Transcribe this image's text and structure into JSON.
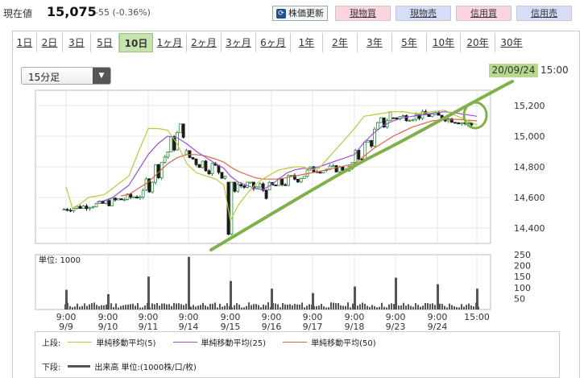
{
  "header": {
    "price_label": "現在値",
    "price_value": "15,075",
    "price_change": "-55 (-0.36%)",
    "refresh_label": "株価更新",
    "buttons": [
      "現物買",
      "現物売",
      "信用買",
      "信用売"
    ]
  },
  "periods": [
    "1日",
    "2日",
    "3日",
    "5日",
    "10日",
    "1ヶ月",
    "2ヶ月",
    "3ヶ月",
    "6ヶ月",
    "1年",
    "2年",
    "3年",
    "5年",
    "10年",
    "20年",
    "30年"
  ],
  "active_period": "10日",
  "interval_select": "15分足",
  "timestamp": {
    "date": "20/09/24",
    "time": "15:00"
  },
  "volume_unit": "単位: 1000",
  "legend": {
    "upper_label": "上段:",
    "ma5": "単純移動平均(5)",
    "ma25": "単純移動平均(25)",
    "ma50": "単純移動平均(50)",
    "lower_label": "下段:",
    "volume": "出来高 単位:(1000株/口/枚)"
  },
  "colors": {
    "ma5": "#b6cc3a",
    "ma25": "#9a4fd6",
    "ma50": "#d9664a",
    "up": "#2d8a3a",
    "down": "#1a1a1a",
    "trendline": "#7fb04a",
    "volume": "#555555"
  },
  "chart_data": {
    "type": "candlestick",
    "price_axis": {
      "ylim": [
        14300,
        15300
      ],
      "ticks": [
        15200,
        15000,
        14800,
        14600,
        14400
      ]
    },
    "volume_axis": {
      "ylim": [
        0,
        250
      ],
      "ticks": [
        250,
        200,
        150,
        100,
        50
      ]
    },
    "x_labels": [
      {
        "time": "9:00",
        "date": "9/9"
      },
      {
        "time": "9:00",
        "date": "9/10"
      },
      {
        "time": "9:00",
        "date": "9/11"
      },
      {
        "time": "9:00",
        "date": "9/14"
      },
      {
        "time": "9:00",
        "date": "9/15"
      },
      {
        "time": "9:00",
        "date": "9/16"
      },
      {
        "time": "9:00",
        "date": "9/17"
      },
      {
        "time": "9:00",
        "date": "9/18"
      },
      {
        "time": "9:00",
        "date": "9/23"
      },
      {
        "time": "9:00",
        "date": "9/24"
      },
      {
        "time": "15:00",
        "date": ""
      }
    ],
    "day_segments": [
      {
        "day": "9/9",
        "open": 14520,
        "close": 14560,
        "low": 14470,
        "high": 14580
      },
      {
        "day": "9/10",
        "open": 14560,
        "close": 14620,
        "low": 14540,
        "high": 14700
      },
      {
        "day": "9/11",
        "open": 14650,
        "close": 15060,
        "low": 14620,
        "high": 15080
      },
      {
        "day": "9/14",
        "open": 14880,
        "close": 14760,
        "low": 14700,
        "high": 15000
      },
      {
        "day": "9/15",
        "open": 14700,
        "close": 14650,
        "low": 14340,
        "high": 14700
      },
      {
        "day": "9/16",
        "open": 14650,
        "close": 14760,
        "low": 14600,
        "high": 14830
      },
      {
        "day": "9/17",
        "open": 14780,
        "close": 14790,
        "low": 14760,
        "high": 14900
      },
      {
        "day": "9/18",
        "open": 14790,
        "close": 15150,
        "low": 14770,
        "high": 15160
      },
      {
        "day": "9/23",
        "open": 15120,
        "close": 15140,
        "low": 15080,
        "high": 15230
      },
      {
        "day": "9/24",
        "open": 15140,
        "close": 15075,
        "low": 15060,
        "high": 15180
      }
    ],
    "ma5_points": [
      null,
      14670,
      14530,
      14560,
      14600,
      14610,
      14620,
      14660,
      14700,
      14740,
      14900,
      15050,
      15050,
      15040,
      14950,
      14820,
      14760,
      14740,
      14720,
      14680,
      14450,
      14550,
      14620,
      14680,
      14720,
      14750,
      14780,
      14790,
      14800,
      14800,
      14780,
      14790,
      15050,
      15130,
      15140,
      15150,
      15160,
      15160,
      15150,
      15150,
      15160,
      15170,
      15130,
      15075
    ],
    "ma25_points": [
      null,
      null,
      null,
      null,
      null,
      14570,
      14580,
      14600,
      14640,
      14680,
      14780,
      14880,
      14950,
      15000,
      14990,
      14950,
      14900,
      14860,
      14820,
      14790,
      14740,
      14700,
      14680,
      14660,
      14650,
      14680,
      14720,
      14760,
      14780,
      14790,
      14790,
      14800,
      14880,
      14960,
      15020,
      15070,
      15100,
      15120,
      15130,
      15140,
      15150,
      15160,
      15150,
      15130
    ],
    "ma50_points": [
      null,
      null,
      null,
      null,
      null,
      null,
      null,
      null,
      14610,
      14620,
      14660,
      14700,
      14760,
      14820,
      14860,
      14880,
      14880,
      14870,
      14850,
      14830,
      14800,
      14770,
      14750,
      14730,
      14720,
      14720,
      14720,
      14730,
      14740,
      14750,
      14760,
      14770,
      14820,
      14870,
      14920,
      14960,
      15000,
      15030,
      15060,
      15080,
      15100,
      15110,
      15110,
      15100
    ],
    "volume_spikes": [
      {
        "day": "9/9",
        "value": 90
      },
      {
        "day": "9/10",
        "value": 70
      },
      {
        "day": "9/11",
        "value": 150
      },
      {
        "day": "9/14",
        "value": 240
      },
      {
        "day": "9/15",
        "value": 130
      },
      {
        "day": "9/16",
        "value": 95
      },
      {
        "day": "9/17",
        "value": 75
      },
      {
        "day": "9/18",
        "value": 105
      },
      {
        "day": "9/23",
        "value": 145
      },
      {
        "day": "9/24",
        "value": 115
      },
      {
        "day": "9/24-close",
        "value": 95
      }
    ]
  }
}
